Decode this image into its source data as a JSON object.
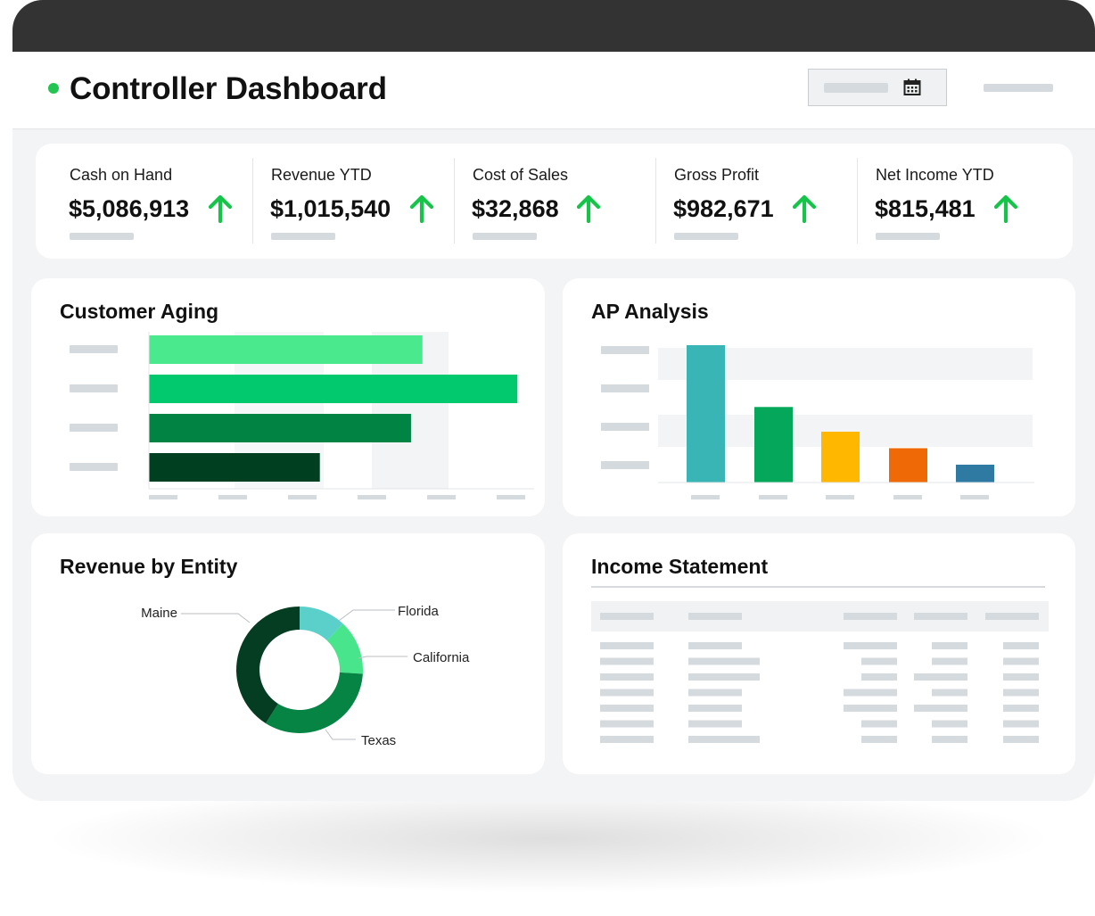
{
  "header": {
    "title": "Controller Dashboard",
    "status_color": "#23c552",
    "date_icon": "calendar-icon"
  },
  "kpis": [
    {
      "label": "Cash on Hand",
      "value": "$5,086,913",
      "trend": "up"
    },
    {
      "label": "Revenue YTD",
      "value": "$1,015,540",
      "trend": "up"
    },
    {
      "label": "Cost of Sales",
      "value": "$32,868",
      "trend": "up"
    },
    {
      "label": "Gross Profit",
      "value": "$982,671",
      "trend": "up"
    },
    {
      "label": "Net Income YTD",
      "value": "$815,481",
      "trend": "up"
    }
  ],
  "trend_color": "#16c44a",
  "panels": {
    "customer_aging": {
      "title": "Customer Aging"
    },
    "ap_analysis": {
      "title": "AP Analysis"
    },
    "revenue_by_entity": {
      "title": "Revenue by Entity"
    },
    "income_statement": {
      "title": "Income Statement"
    }
  },
  "chart_data": [
    {
      "type": "bar",
      "orientation": "horizontal",
      "title": "Customer Aging",
      "values": [
        72,
        97,
        69,
        45
      ],
      "xlim": [
        0,
        100
      ],
      "colors": [
        "#4ae98e",
        "#02c96d",
        "#018443",
        "#003f20"
      ],
      "grid": true
    },
    {
      "type": "bar",
      "title": "AP Analysis",
      "values": [
        100,
        55,
        37,
        25,
        13
      ],
      "ylim": [
        0,
        100
      ],
      "colors": [
        "#3ab5b5",
        "#05a75b",
        "#ffb700",
        "#ef6a07",
        "#2e7aa3"
      ],
      "grid": true
    },
    {
      "type": "pie",
      "donut": true,
      "title": "Revenue by Entity",
      "slices": [
        {
          "label": "Florida",
          "value": 12,
          "color": "#5bcfc9"
        },
        {
          "label": "California",
          "value": 14,
          "color": "#49e58c"
        },
        {
          "label": "Texas",
          "value": 33,
          "color": "#058443"
        },
        {
          "label": "Maine",
          "value": 41,
          "color": "#053d22"
        }
      ]
    }
  ]
}
